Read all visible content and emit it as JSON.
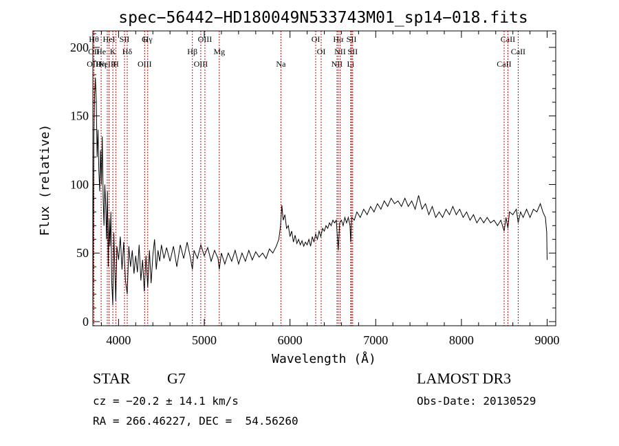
{
  "colors": {
    "spectrum": "#000000",
    "line_markers": "#cc0000",
    "background": "#ffffff"
  },
  "info": {
    "object_class": "STAR",
    "subclass": "G7",
    "survey": "LAMOST DR3",
    "redshift": "cz = −20.2 ± 14.1 km/s",
    "obs_date": "Obs-Date: 20130529",
    "coords": "RA = 266.46227, DEC =  54.56260"
  },
  "chart_data": {
    "type": "line",
    "title": "spec−56442−HD180049N533743M01_sp14−018.fits",
    "xlabel": "Wavelength (Å)",
    "ylabel": "Flux (relative)",
    "xlim": [
      3700,
      9100
    ],
    "ylim": [
      -3,
      212
    ],
    "grid": false,
    "x_ticks": [
      4000,
      5000,
      6000,
      7000,
      8000,
      9000
    ],
    "y_ticks": [
      0,
      50,
      100,
      150,
      200
    ],
    "series": [
      {
        "values": [
          [
            3700,
            0
          ],
          [
            3712,
            135
          ],
          [
            3720,
            165
          ],
          [
            3730,
            178
          ],
          [
            3740,
            160
          ],
          [
            3750,
            120
          ],
          [
            3760,
            140
          ],
          [
            3770,
            110
          ],
          [
            3780,
            95
          ],
          [
            3790,
            125
          ],
          [
            3800,
            100
          ],
          [
            3810,
            135
          ],
          [
            3820,
            90
          ],
          [
            3830,
            70
          ],
          [
            3840,
            100
          ],
          [
            3850,
            85
          ],
          [
            3860,
            60
          ],
          [
            3870,
            95
          ],
          [
            3880,
            40
          ],
          [
            3890,
            75
          ],
          [
            3900,
            55
          ],
          [
            3910,
            80
          ],
          [
            3920,
            30
          ],
          [
            3933,
            12
          ],
          [
            3945,
            65
          ],
          [
            3955,
            40
          ],
          [
            3968,
            15
          ],
          [
            3980,
            55
          ],
          [
            4000,
            45
          ],
          [
            4020,
            62
          ],
          [
            4040,
            38
          ],
          [
            4060,
            58
          ],
          [
            4080,
            30
          ],
          [
            4101,
            20
          ],
          [
            4120,
            55
          ],
          [
            4140,
            40
          ],
          [
            4160,
            52
          ],
          [
            4180,
            35
          ],
          [
            4200,
            48
          ],
          [
            4220,
            36
          ],
          [
            4240,
            56
          ],
          [
            4260,
            30
          ],
          [
            4280,
            45
          ],
          [
            4300,
            22
          ],
          [
            4320,
            48
          ],
          [
            4340,
            25
          ],
          [
            4360,
            52
          ],
          [
            4380,
            28
          ],
          [
            4400,
            48
          ],
          [
            4420,
            60
          ],
          [
            4440,
            38
          ],
          [
            4460,
            52
          ],
          [
            4480,
            44
          ],
          [
            4500,
            56
          ],
          [
            4530,
            46
          ],
          [
            4560,
            54
          ],
          [
            4600,
            44
          ],
          [
            4640,
            55
          ],
          [
            4680,
            40
          ],
          [
            4720,
            56
          ],
          [
            4760,
            46
          ],
          [
            4800,
            58
          ],
          [
            4840,
            46
          ],
          [
            4861,
            38
          ],
          [
            4880,
            52
          ],
          [
            4920,
            46
          ],
          [
            4960,
            56
          ],
          [
            5000,
            48
          ],
          [
            5040,
            54
          ],
          [
            5080,
            44
          ],
          [
            5120,
            52
          ],
          [
            5160,
            46
          ],
          [
            5175,
            38
          ],
          [
            5200,
            50
          ],
          [
            5240,
            42
          ],
          [
            5280,
            50
          ],
          [
            5320,
            44
          ],
          [
            5360,
            52
          ],
          [
            5400,
            42
          ],
          [
            5440,
            50
          ],
          [
            5480,
            44
          ],
          [
            5520,
            52
          ],
          [
            5560,
            45
          ],
          [
            5600,
            51
          ],
          [
            5640,
            47
          ],
          [
            5680,
            50
          ],
          [
            5720,
            46
          ],
          [
            5760,
            53
          ],
          [
            5800,
            50
          ],
          [
            5840,
            55
          ],
          [
            5870,
            60
          ],
          [
            5890,
            70
          ],
          [
            5905,
            85
          ],
          [
            5920,
            74
          ],
          [
            5940,
            78
          ],
          [
            5960,
            68
          ],
          [
            5980,
            70
          ],
          [
            6000,
            62
          ],
          [
            6020,
            66
          ],
          [
            6040,
            58
          ],
          [
            6060,
            63
          ],
          [
            6080,
            57
          ],
          [
            6100,
            60
          ],
          [
            6120,
            56
          ],
          [
            6140,
            59
          ],
          [
            6160,
            55
          ],
          [
            6180,
            58
          ],
          [
            6200,
            56
          ],
          [
            6220,
            60
          ],
          [
            6240,
            55
          ],
          [
            6260,
            62
          ],
          [
            6280,
            58
          ],
          [
            6300,
            64
          ],
          [
            6320,
            60
          ],
          [
            6340,
            66
          ],
          [
            6360,
            62
          ],
          [
            6380,
            68
          ],
          [
            6400,
            66
          ],
          [
            6420,
            70
          ],
          [
            6440,
            68
          ],
          [
            6460,
            72
          ],
          [
            6480,
            70
          ],
          [
            6500,
            74
          ],
          [
            6520,
            72
          ],
          [
            6540,
            74
          ],
          [
            6563,
            52
          ],
          [
            6580,
            72
          ],
          [
            6600,
            74
          ],
          [
            6620,
            70
          ],
          [
            6640,
            76
          ],
          [
            6660,
            72
          ],
          [
            6680,
            76
          ],
          [
            6700,
            70
          ],
          [
            6708,
            58
          ],
          [
            6720,
            76
          ],
          [
            6750,
            74
          ],
          [
            6780,
            80
          ],
          [
            6820,
            76
          ],
          [
            6860,
            82
          ],
          [
            6900,
            78
          ],
          [
            6940,
            84
          ],
          [
            6980,
            80
          ],
          [
            7020,
            86
          ],
          [
            7060,
            82
          ],
          [
            7100,
            88
          ],
          [
            7140,
            84
          ],
          [
            7180,
            90
          ],
          [
            7220,
            86
          ],
          [
            7260,
            88
          ],
          [
            7300,
            84
          ],
          [
            7340,
            90
          ],
          [
            7380,
            84
          ],
          [
            7420,
            88
          ],
          [
            7460,
            82
          ],
          [
            7500,
            92
          ],
          [
            7540,
            82
          ],
          [
            7580,
            86
          ],
          [
            7620,
            78
          ],
          [
            7660,
            84
          ],
          [
            7700,
            76
          ],
          [
            7740,
            80
          ],
          [
            7780,
            76
          ],
          [
            7820,
            82
          ],
          [
            7860,
            78
          ],
          [
            7900,
            84
          ],
          [
            7940,
            78
          ],
          [
            7980,
            82
          ],
          [
            8020,
            76
          ],
          [
            8060,
            80
          ],
          [
            8100,
            74
          ],
          [
            8140,
            78
          ],
          [
            8180,
            72
          ],
          [
            8220,
            76
          ],
          [
            8260,
            72
          ],
          [
            8300,
            76
          ],
          [
            8340,
            72
          ],
          [
            8380,
            74
          ],
          [
            8420,
            70
          ],
          [
            8460,
            74
          ],
          [
            8498,
            66
          ],
          [
            8520,
            76
          ],
          [
            8542,
            68
          ],
          [
            8560,
            80
          ],
          [
            8600,
            78
          ],
          [
            8640,
            82
          ],
          [
            8662,
            72
          ],
          [
            8690,
            80
          ],
          [
            8720,
            76
          ],
          [
            8760,
            82
          ],
          [
            8800,
            76
          ],
          [
            8840,
            82
          ],
          [
            8880,
            80
          ],
          [
            8920,
            86
          ],
          [
            8950,
            80
          ],
          [
            8980,
            76
          ],
          [
            8995,
            65
          ],
          [
            9000,
            45
          ]
        ]
      }
    ],
    "lines": [
      {
        "x": 3712,
        "labels": [
          "Hθ",
          "OII",
          "OIII"
        ]
      },
      {
        "x": 3797,
        "labels": [
          "He",
          "Hη"
        ]
      },
      {
        "x": 3868,
        "labels": [
          "NeIII"
        ]
      },
      {
        "x": 3889,
        "labels": [
          "HeI"
        ]
      },
      {
        "x": 3933,
        "labels": [
          "K"
        ]
      },
      {
        "x": 3968,
        "labels": [
          "H"
        ]
      },
      {
        "x": 4069,
        "labels": [
          "SII"
        ]
      },
      {
        "x": 4101,
        "labels": [
          "Hδ"
        ]
      },
      {
        "x": 4304,
        "labels": [
          "OIII",
          "G"
        ]
      },
      {
        "x": 4340,
        "labels": [
          "Hγ"
        ]
      },
      {
        "x": 4861,
        "labels": [
          "Hβ"
        ]
      },
      {
        "x": 4959,
        "labels": [
          "OIII"
        ]
      },
      {
        "x": 5007,
        "labels": [
          "OIII"
        ]
      },
      {
        "x": 5175,
        "labels": [
          "Mg"
        ]
      },
      {
        "x": 5894,
        "labels": [
          "Na"
        ]
      },
      {
        "x": 6300,
        "labels": [
          "OI"
        ]
      },
      {
        "x": 6364,
        "labels": [
          "OI"
        ]
      },
      {
        "x": 6548,
        "labels": [
          "NII"
        ]
      },
      {
        "x": 6563,
        "labels": [
          "Hα"
        ]
      },
      {
        "x": 6584,
        "labels": [
          "NII"
        ]
      },
      {
        "x": 6708,
        "labels": [
          "Li"
        ]
      },
      {
        "x": 6717,
        "labels": [
          "SII"
        ]
      },
      {
        "x": 6731,
        "labels": [
          "SII"
        ]
      },
      {
        "x": 8498,
        "labels": [
          "CaII"
        ]
      },
      {
        "x": 8542,
        "labels": [
          "CaII"
        ]
      },
      {
        "x": 8662,
        "labels": [
          "CaII"
        ]
      }
    ]
  }
}
